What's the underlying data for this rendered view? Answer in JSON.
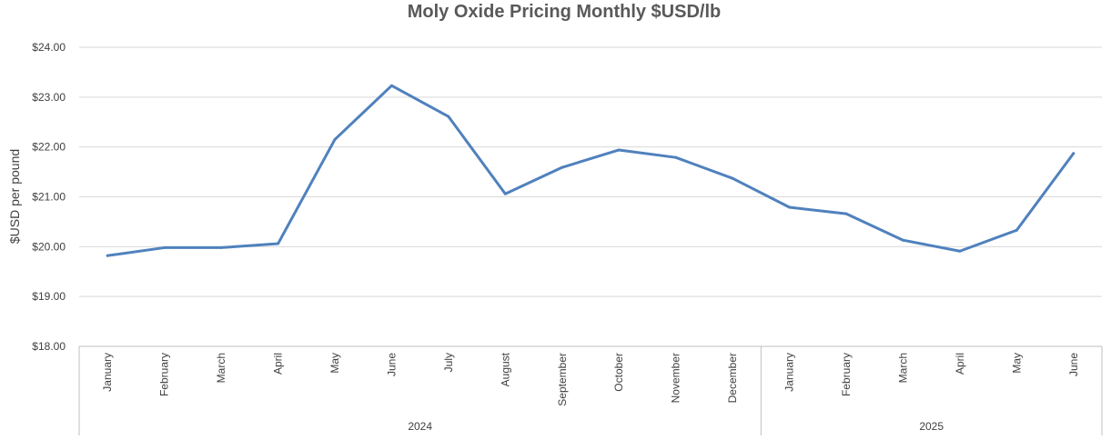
{
  "chart_data": {
    "type": "line",
    "title": "Moly Oxide Pricing Monthly $USD/lb",
    "ylabel": "$USD per pound",
    "xlabel": "",
    "ylim": [
      18,
      24
    ],
    "yticks": [
      "$18.00",
      "$19.00",
      "$20.00",
      "$21.00",
      "$22.00",
      "$23.00",
      "$24.00"
    ],
    "grid": true,
    "legend": "none",
    "line_color": "#4F81BD",
    "groups": [
      {
        "label": "2024",
        "categories": [
          "January",
          "February",
          "March",
          "April",
          "May",
          "June",
          "July",
          "August",
          "September",
          "October",
          "November",
          "December"
        ]
      },
      {
        "label": "2025",
        "categories": [
          "January",
          "February",
          "March",
          "April",
          "May",
          "June"
        ]
      }
    ],
    "categories": [
      "January",
      "February",
      "March",
      "April",
      "May",
      "June",
      "July",
      "August",
      "September",
      "October",
      "November",
      "December",
      "January",
      "February",
      "March",
      "April",
      "May",
      "June"
    ],
    "series": [
      {
        "values": [
          19.82,
          19.98,
          19.98,
          20.06,
          22.15,
          23.23,
          22.61,
          21.06,
          21.59,
          21.94,
          21.79,
          21.37,
          20.79,
          20.66,
          20.13,
          19.91,
          20.33,
          21.87
        ]
      }
    ]
  }
}
